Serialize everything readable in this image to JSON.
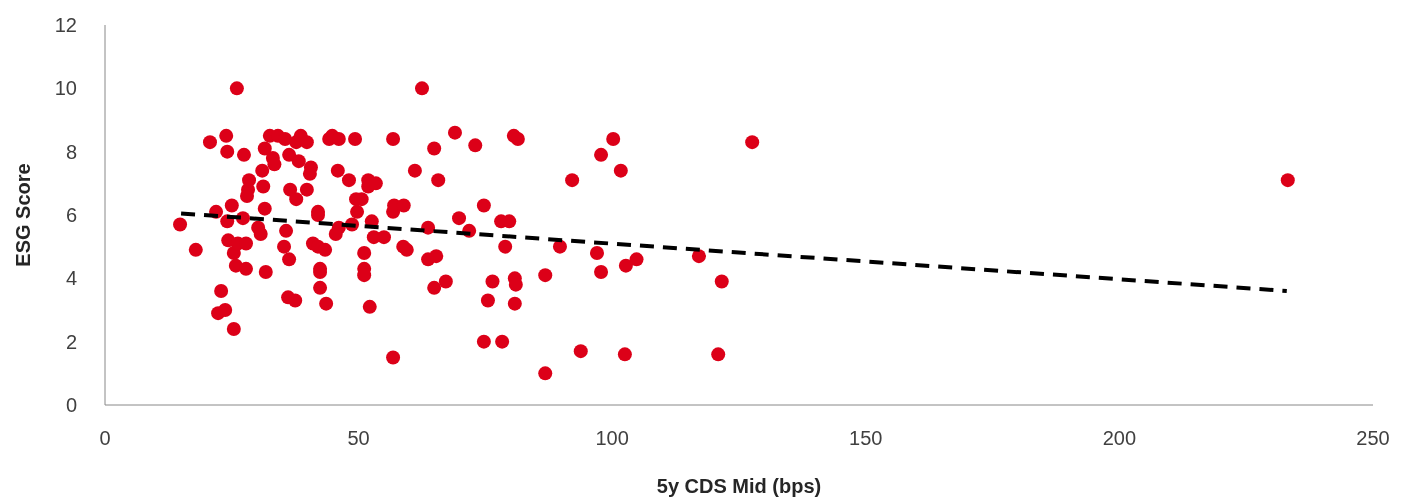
{
  "chart_data": {
    "type": "scatter",
    "xlabel": "5y CDS Mid (bps)",
    "ylabel": "ESG Score",
    "xlim": [
      0,
      250
    ],
    "ylim": [
      0,
      12
    ],
    "xticks": [
      0,
      50,
      100,
      150,
      200,
      250
    ],
    "yticks": [
      0,
      2,
      4,
      6,
      8,
      10,
      12
    ],
    "grid": false,
    "series": [
      {
        "marker": "circle",
        "color": "#dc0018",
        "x": [
          14.8,
          17.9,
          20.7,
          21.9,
          22.3,
          22.9,
          23.7,
          23.9,
          24.1,
          24.1,
          24.3,
          25.0,
          25.4,
          26.0,
          25.8,
          25.4,
          26.2,
          27.2,
          27.4,
          27.8,
          27.8,
          28.2,
          28.4,
          28.0,
          31.0,
          31.2,
          31.5,
          31.5,
          31.7,
          30.2,
          30.7,
          32.5,
          33.1,
          33.4,
          34.1,
          35.3,
          35.5,
          35.7,
          36.1,
          36.3,
          36.3,
          36.5,
          37.5,
          37.7,
          37.7,
          38.2,
          38.6,
          39.8,
          39.8,
          40.4,
          40.6,
          41.0,
          42.0,
          42.0,
          42.0,
          42.4,
          42.4,
          42.4,
          43.4,
          43.6,
          44.2,
          44.8,
          46.1,
          45.9,
          45.5,
          46.1,
          48.1,
          49.3,
          49.5,
          49.7,
          48.7,
          50.6,
          51.1,
          51.1,
          51.1,
          51.9,
          51.9,
          52.2,
          52.6,
          53.0,
          53.4,
          55.0,
          56.8,
          56.8,
          57.0,
          56.8,
          58.9,
          58.8,
          59.5,
          61.1,
          62.5,
          63.7,
          63.7,
          64.9,
          64.9,
          65.3,
          65.7,
          67.2,
          69.0,
          69.8,
          71.8,
          73.0,
          74.7,
          74.7,
          75.5,
          76.4,
          78.1,
          78.3,
          78.9,
          79.7,
          80.6,
          81.4,
          80.8,
          81.0,
          80.8,
          86.8,
          86.8,
          89.7,
          92.1,
          93.8,
          97.0,
          97.8,
          97.8,
          100.2,
          101.7,
          102.5,
          102.7,
          104.8,
          117.1,
          120.9,
          121.6,
          127.6,
          233.2
        ],
        "values": [
          5.7,
          4.9,
          8.3,
          6.1,
          2.9,
          3.6,
          3.0,
          8.5,
          8.0,
          5.8,
          5.2,
          6.3,
          2.4,
          10.0,
          4.4,
          4.8,
          5.1,
          5.9,
          7.9,
          5.1,
          4.3,
          6.8,
          7.1,
          6.6,
          7.4,
          6.9,
          8.1,
          6.2,
          4.2,
          5.6,
          5.4,
          8.5,
          7.8,
          7.6,
          8.5,
          5.0,
          8.4,
          5.5,
          3.4,
          4.6,
          7.9,
          6.8,
          3.3,
          6.5,
          8.3,
          7.7,
          8.5,
          8.3,
          6.8,
          7.3,
          7.5,
          5.1,
          5.0,
          6.1,
          6.0,
          4.3,
          4.2,
          3.7,
          4.9,
          3.2,
          8.4,
          8.5,
          8.4,
          7.4,
          5.4,
          5.6,
          7.1,
          8.4,
          6.5,
          6.1,
          5.7,
          6.5,
          4.8,
          4.3,
          4.1,
          6.9,
          7.1,
          3.1,
          5.8,
          5.3,
          7.0,
          5.3,
          8.4,
          6.1,
          6.3,
          1.5,
          6.3,
          5.0,
          4.9,
          7.4,
          10.0,
          5.6,
          4.6,
          8.1,
          3.7,
          4.7,
          7.1,
          3.9,
          8.6,
          5.9,
          5.5,
          8.2,
          6.3,
          2.0,
          3.3,
          3.9,
          5.8,
          2.0,
          5.0,
          5.8,
          8.5,
          8.4,
          4.0,
          3.8,
          3.2,
          1.0,
          4.1,
          5.0,
          7.1,
          1.7,
          4.8,
          7.9,
          4.2,
          8.4,
          7.4,
          1.6,
          4.4,
          4.6,
          4.7,
          1.6,
          3.9,
          8.3,
          7.1
        ]
      },
      {
        "type": "line",
        "color": "#000000",
        "line_style": "dashed",
        "marker": "none",
        "x": [
          15,
          233
        ],
        "values": [
          6.05,
          3.6
        ]
      }
    ]
  }
}
